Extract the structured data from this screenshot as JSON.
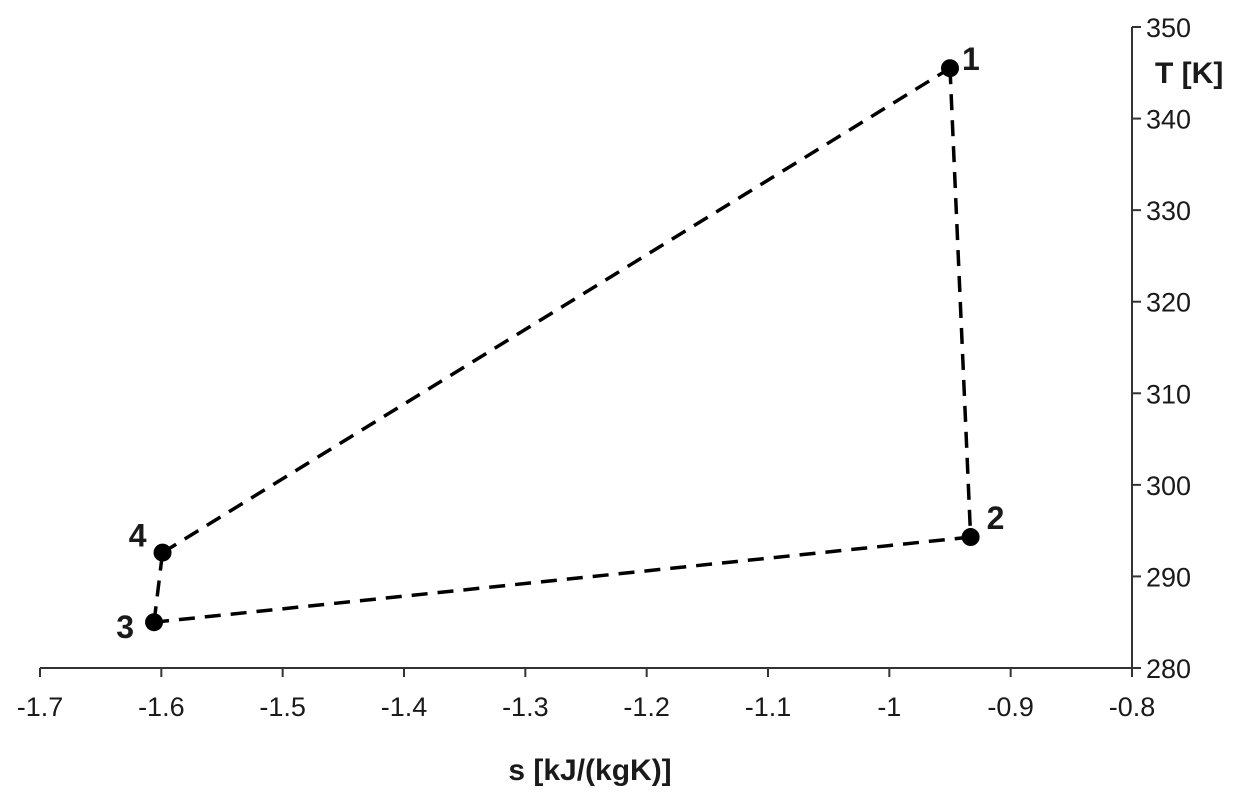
{
  "chart_data": {
    "type": "scatter",
    "title": "",
    "xlabel": "s [kJ/(kgK)]",
    "ylabel": "T [K]",
    "xlim": [
      -1.7,
      -0.8
    ],
    "ylim": [
      280,
      350
    ],
    "xticks": [
      -1.7,
      -1.6,
      -1.5,
      -1.4,
      -1.3,
      -1.2,
      -1.1,
      -1,
      -0.9,
      -0.8
    ],
    "yticks": [
      280,
      290,
      300,
      310,
      320,
      330,
      340,
      350
    ],
    "y_axis_position": "right",
    "grid": false,
    "line_style": "dashed",
    "marker": "filled-circle",
    "color": "#000000",
    "points": [
      {
        "label": "1",
        "s": -0.95,
        "T": 345.5
      },
      {
        "label": "2",
        "s": -0.933,
        "T": 294.3
      },
      {
        "label": "3",
        "s": -1.606,
        "T": 285.0
      },
      {
        "label": "4",
        "s": -1.599,
        "T": 292.6
      }
    ],
    "path_order": [
      "1",
      "2",
      "3",
      "4",
      "1"
    ]
  }
}
